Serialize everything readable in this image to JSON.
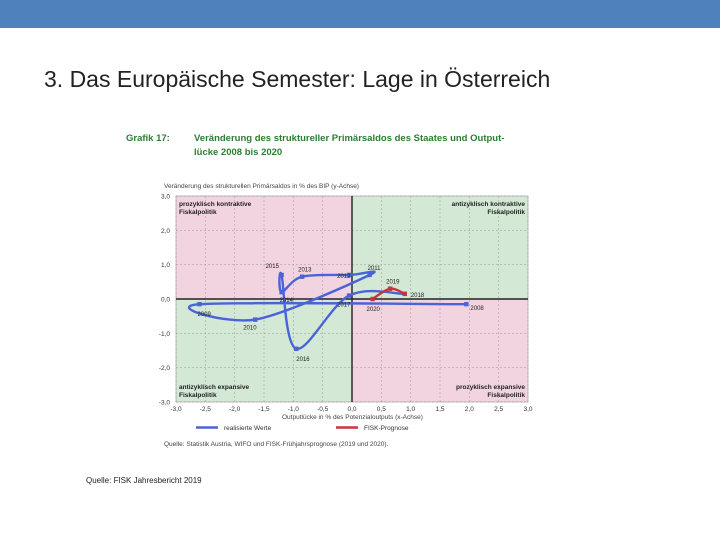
{
  "slide": {
    "title": "3. Das Europäische Semester: Lage in Österreich",
    "source_caption": "Quelle: FISK Jahresbericht 2019"
  },
  "colors": {
    "topbar": "#4f81bd",
    "pink_quadrant": "#f2d3e0",
    "green_quadrant": "#d3e8d5",
    "realized_line": "#4a63d6",
    "forecast_line": "#c8333c",
    "heading": "#2e7d32"
  },
  "figure": {
    "grafik_label": "Grafik 17:",
    "heading_line1": "Veränderung des struktureller Primärsaldos des Staates und Output-",
    "heading_line2": "lücke 2008 bis 2020",
    "source_note": "Quelle: Statistik Austria, WIFO und FISK-Frühjahrsprognose (2019 und 2020)."
  },
  "chart_data": {
    "type": "line",
    "ylabel": "Veränderung des strukturellen Primärsaldos in % des BIP (y-Achse)",
    "xlabel": "Outputlücke in % des Potenzialoutputs (x-Achse)",
    "xlim": [
      -3.0,
      3.0
    ],
    "ylim": [
      -3.0,
      3.0
    ],
    "x_ticks": [
      "-3,0",
      "-2,5",
      "-2,0",
      "-1,5",
      "-1,0",
      "-0,5",
      "0,0",
      "0,5",
      "1,0",
      "1,5",
      "2,0",
      "2,5",
      "3,0"
    ],
    "y_ticks": [
      "3,0",
      "2,0",
      "1,0",
      "0,0",
      "-1,0",
      "-2,0",
      "-3,0"
    ],
    "grid": true,
    "quadrant_labels": [
      {
        "text": [
          "prozyklisch kontraktive",
          "Fiskalpolitik"
        ],
        "corner": "top-left"
      },
      {
        "text": [
          "antizyklisch kontraktive",
          "Fiskalpolitik"
        ],
        "corner": "top-right"
      },
      {
        "text": [
          "antizyklisch expansive",
          "Fiskalpolitik"
        ],
        "corner": "bottom-left"
      },
      {
        "text": [
          "prozyklisch expansive",
          "Fiskalpolitik"
        ],
        "corner": "bottom-right"
      }
    ],
    "series": [
      {
        "name": "realisierte Werte",
        "points": [
          {
            "x": 1.95,
            "y": -0.15,
            "label": "2008"
          },
          {
            "x": -2.6,
            "y": -0.15,
            "label": "2009"
          },
          {
            "x": -1.65,
            "y": -0.6,
            "label": "2010"
          },
          {
            "x": 0.3,
            "y": 0.7,
            "label": "2011"
          },
          {
            "x": -0.05,
            "y": 0.7,
            "label": "2012"
          },
          {
            "x": -0.85,
            "y": 0.65,
            "label": "2013"
          },
          {
            "x": -1.2,
            "y": 0.2,
            "label": "2014"
          },
          {
            "x": -1.2,
            "y": 0.7,
            "label": "2015"
          },
          {
            "x": -0.95,
            "y": -1.45,
            "label": "2016"
          },
          {
            "x": -0.05,
            "y": 0.1,
            "label": "2017"
          },
          {
            "x": 0.9,
            "y": 0.15,
            "label": "2018"
          }
        ]
      },
      {
        "name": "FISK-Prognose",
        "points": [
          {
            "x": 0.9,
            "y": 0.15,
            "label": ""
          },
          {
            "x": 0.65,
            "y": 0.3,
            "label": "2019"
          },
          {
            "x": 0.35,
            "y": 0.0,
            "label": "2020"
          }
        ]
      }
    ],
    "legend": [
      "realisierte Werte",
      "FISK-Prognose"
    ]
  }
}
